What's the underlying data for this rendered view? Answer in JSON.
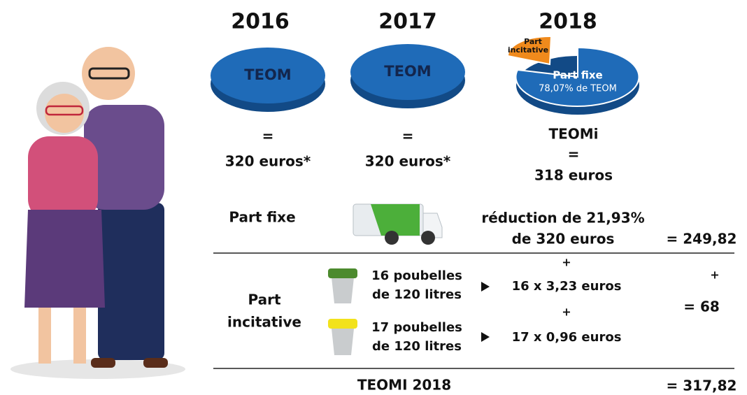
{
  "columns": [
    {
      "year": "2016",
      "disc_label": "TEOM",
      "equals": "=",
      "amount": "320 euros*"
    },
    {
      "year": "2017",
      "disc_label": "TEOM",
      "equals": "=",
      "amount": "320 euros*"
    },
    {
      "year": "2018",
      "slice_small": [
        "Part",
        "incitative"
      ],
      "slice_large": "Part fixe",
      "slice_large_note": "78,07% de TEOM",
      "name": "TEOMi",
      "equals": "=",
      "amount": "318 euros"
    }
  ],
  "fixed_row": {
    "label": "Part fixe",
    "text": [
      "réduction de 21,93%",
      "de 320 euros"
    ],
    "total": "= 249,82"
  },
  "incentive_row": {
    "label": [
      "Part",
      "incitative"
    ],
    "items": [
      {
        "bins": [
          "16 poubelles",
          "de 120 litres"
        ],
        "plus": "+",
        "cost": "16 x 3,23 euros"
      },
      {
        "bins": [
          "17 poubelles",
          "de 120 litres"
        ],
        "plus": "+",
        "cost": "17 x 0,96 euros"
      }
    ],
    "plus": "+",
    "total": "= 68"
  },
  "total_row": {
    "label": "TEOMI 2018",
    "total": "= 317,82"
  }
}
